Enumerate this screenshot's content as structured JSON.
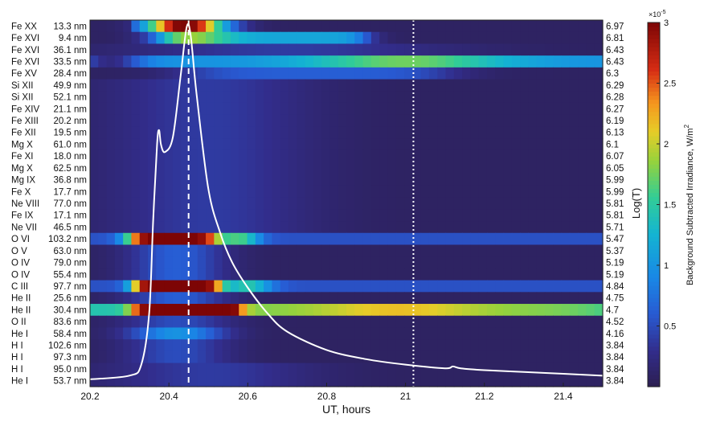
{
  "chart_data": {
    "type": "heatmap",
    "xlabel": "UT, hours",
    "ylabel_right": "Log(T)",
    "colorbar_label": "Background Subtracted Irradiance, W/m",
    "colorbar_label_superscript": "2",
    "colorbar_exponent": "×10",
    "colorbar_exponent_power": "-5",
    "colorbar_range": [
      0,
      3
    ],
    "colorbar_ticks": [
      "0.5",
      "1",
      "1.5",
      "2",
      "2.5",
      "3"
    ],
    "colorbar_tick_values": [
      0.5,
      1,
      1.5,
      2,
      2.5,
      3
    ],
    "colormap": "parula-like (dark navy to blue, cyan, yellow, red, dark red)",
    "xlim": [
      20.2,
      21.5
    ],
    "x_ticks": [
      "20.2",
      "20.4",
      "20.6",
      "20.8",
      "21",
      "21.2",
      "21.4"
    ],
    "x_tick_values": [
      20.2,
      20.4,
      20.6,
      20.8,
      21.0,
      21.2,
      21.4
    ],
    "vlines": [
      {
        "x": 20.45,
        "style": "dashed",
        "color": "#ffffff"
      },
      {
        "x": 21.02,
        "style": "dotted",
        "color": "#ffffff"
      }
    ],
    "rows": [
      {
        "ion": "Fe XX",
        "wl": "13.3 nm",
        "logT": "6.97"
      },
      {
        "ion": "Fe XVI",
        "wl": "9.4 nm",
        "logT": "6.81"
      },
      {
        "ion": "Fe XVI",
        "wl": "36.1 nm",
        "logT": "6.43"
      },
      {
        "ion": "Fe XVI",
        "wl": "33.5 nm",
        "logT": "6.43"
      },
      {
        "ion": "Fe XV",
        "wl": "28.4 nm",
        "logT": "6.3"
      },
      {
        "ion": "Si XII",
        "wl": "49.9 nm",
        "logT": "6.29"
      },
      {
        "ion": "Si XII",
        "wl": "52.1 nm",
        "logT": "6.28"
      },
      {
        "ion": "Fe XIV",
        "wl": "21.1 nm",
        "logT": "6.27"
      },
      {
        "ion": "Fe XIII",
        "wl": "20.2 nm",
        "logT": "6.19"
      },
      {
        "ion": "Fe XII",
        "wl": "19.5 nm",
        "logT": "6.13"
      },
      {
        "ion": "Mg X",
        "wl": "61.0 nm",
        "logT": "6.1"
      },
      {
        "ion": "Fe XI",
        "wl": "18.0 nm",
        "logT": "6.07"
      },
      {
        "ion": "Mg X",
        "wl": "62.5 nm",
        "logT": "6.05"
      },
      {
        "ion": "Mg IX",
        "wl": "36.8 nm",
        "logT": "5.99"
      },
      {
        "ion": "Fe X",
        "wl": "17.7 nm",
        "logT": "5.99"
      },
      {
        "ion": "Ne VIII",
        "wl": "77.0 nm",
        "logT": "5.81"
      },
      {
        "ion": "Fe IX",
        "wl": "17.1 nm",
        "logT": "5.81"
      },
      {
        "ion": "Ne VII",
        "wl": "46.5 nm",
        "logT": "5.71"
      },
      {
        "ion": "O VI",
        "wl": "103.2 nm",
        "logT": "5.47"
      },
      {
        "ion": "O V",
        "wl": "63.0 nm",
        "logT": "5.37"
      },
      {
        "ion": "O IV",
        "wl": "79.0 nm",
        "logT": "5.19"
      },
      {
        "ion": "O IV",
        "wl": "55.4 nm",
        "logT": "5.19"
      },
      {
        "ion": "C III",
        "wl": "97.7 nm",
        "logT": "4.84"
      },
      {
        "ion": "He II",
        "wl": "25.6 nm",
        "logT": "4.75"
      },
      {
        "ion": "He II",
        "wl": "30.4 nm",
        "logT": "4.7"
      },
      {
        "ion": "O II",
        "wl": "83.6 nm",
        "logT": "4.52"
      },
      {
        "ion": "He I",
        "wl": "58.4 nm",
        "logT": "4.16"
      },
      {
        "ion": "H I",
        "wl": "102.6 nm",
        "logT": "3.84"
      },
      {
        "ion": "H I",
        "wl": "97.3 nm",
        "logT": "3.84"
      },
      {
        "ion": "H I",
        "wl": "95.0 nm",
        "logT": "3.84"
      },
      {
        "ion": "He I",
        "wl": "53.7 nm",
        "logT": "3.84"
      }
    ],
    "curve": {
      "color": "#ffffff",
      "x": [
        20.2,
        20.3,
        20.33,
        20.35,
        20.36,
        20.37,
        20.375,
        20.38,
        20.39,
        20.41,
        20.43,
        20.445,
        20.455,
        20.47,
        20.5,
        20.53,
        20.56,
        20.6,
        20.65,
        20.7,
        20.8,
        20.9,
        21.0,
        21.1,
        21.12,
        21.14,
        21.2,
        21.3,
        21.4,
        21.5
      ],
      "y_frac": [
        0.02,
        0.03,
        0.06,
        0.2,
        0.45,
        0.66,
        0.7,
        0.66,
        0.64,
        0.68,
        0.85,
        0.98,
        0.96,
        0.8,
        0.54,
        0.42,
        0.34,
        0.27,
        0.2,
        0.15,
        0.1,
        0.075,
        0.06,
        0.05,
        0.055,
        0.05,
        0.045,
        0.04,
        0.035,
        0.03
      ]
    }
  }
}
